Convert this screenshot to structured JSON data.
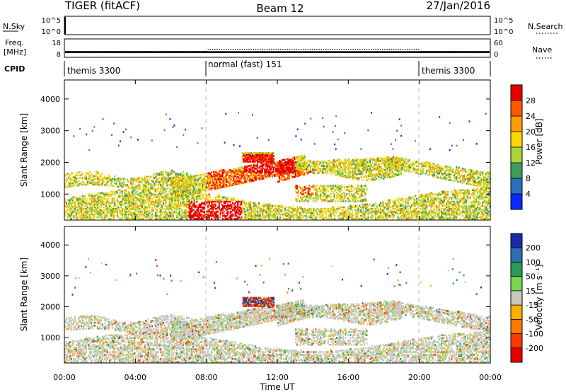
{
  "header": {
    "radar": "TIGER (fitACF)",
    "beam": "Beam 12",
    "date": "27/Jan/2016"
  },
  "noise_panel": {
    "left_label": "N.Sky",
    "left_ticks": [
      "10^5",
      "10^0"
    ],
    "right_ticks": [
      "10^5",
      "10^0"
    ],
    "right_label": "N.Search"
  },
  "freq_panel": {
    "left_label_1": "Freq.",
    "left_label_2": "[MHz]",
    "left_ticks": [
      "18",
      "8"
    ],
    "right_ticks": [
      "60",
      "0"
    ],
    "right_label": "Nave"
  },
  "cpid_panel": {
    "label": "CPID",
    "segments": [
      {
        "name": "themis 3300",
        "start_h": 0,
        "end_h": 8
      },
      {
        "name": "normal (fast) 151",
        "start_h": 8,
        "end_h": 20
      },
      {
        "name": "themis 3300",
        "start_h": 20,
        "end_h": 24
      }
    ]
  },
  "chart_data": [
    {
      "type": "heatmap",
      "title": "Power",
      "ylabel": "Slant Range [km]",
      "xlabel": "Time UT",
      "xlim_hours": [
        0,
        24
      ],
      "ylim": [
        180,
        4600
      ],
      "yticks": [
        1000,
        2000,
        3000,
        4000
      ],
      "xticks": [
        "00:00",
        "04:00",
        "08:00",
        "12:00",
        "16:00",
        "20:00",
        "00:00"
      ],
      "colorbar": {
        "label": "Power [dB]",
        "ticks": [
          "28",
          "24",
          "20",
          "16",
          "12",
          "8",
          "4"
        ],
        "colors": [
          "#e60000",
          "#ff5a00",
          "#ff9d00",
          "#ffd700",
          "#a9d63a",
          "#3f9c5c",
          "#2c6fb8",
          "#0a2aff"
        ]
      }
    },
    {
      "type": "heatmap",
      "title": "Velocity",
      "ylabel": "Slant Range [km]",
      "xlabel": "Time UT",
      "xlim_hours": [
        0,
        24
      ],
      "ylim": [
        180,
        4600
      ],
      "yticks": [
        1000,
        2000,
        3000,
        4000
      ],
      "xticks": [
        "00:00",
        "04:00",
        "08:00",
        "12:00",
        "16:00",
        "20:00",
        "00:00"
      ],
      "colorbar": {
        "label": "Velocity [m s⁻¹]",
        "ticks": [
          "200",
          "100",
          "50",
          "15",
          "-15",
          "-50",
          "-100",
          "-200"
        ],
        "colors": [
          "#1c2ca8",
          "#2c6fb8",
          "#2a9a5a",
          "#7ad64a",
          "#c8c8c0",
          "#ffb000",
          "#ff7a00",
          "#ff3a00",
          "#e60000"
        ]
      }
    }
  ],
  "xaxis_label": "Time UT",
  "x_tick_labels": [
    "00:00",
    "04:00",
    "08:00",
    "12:00",
    "16:00",
    "20:00",
    "00:00"
  ],
  "power_cbar_label": "Power [dB]",
  "velocity_cbar_label": "Velocity [m s⁻¹]"
}
